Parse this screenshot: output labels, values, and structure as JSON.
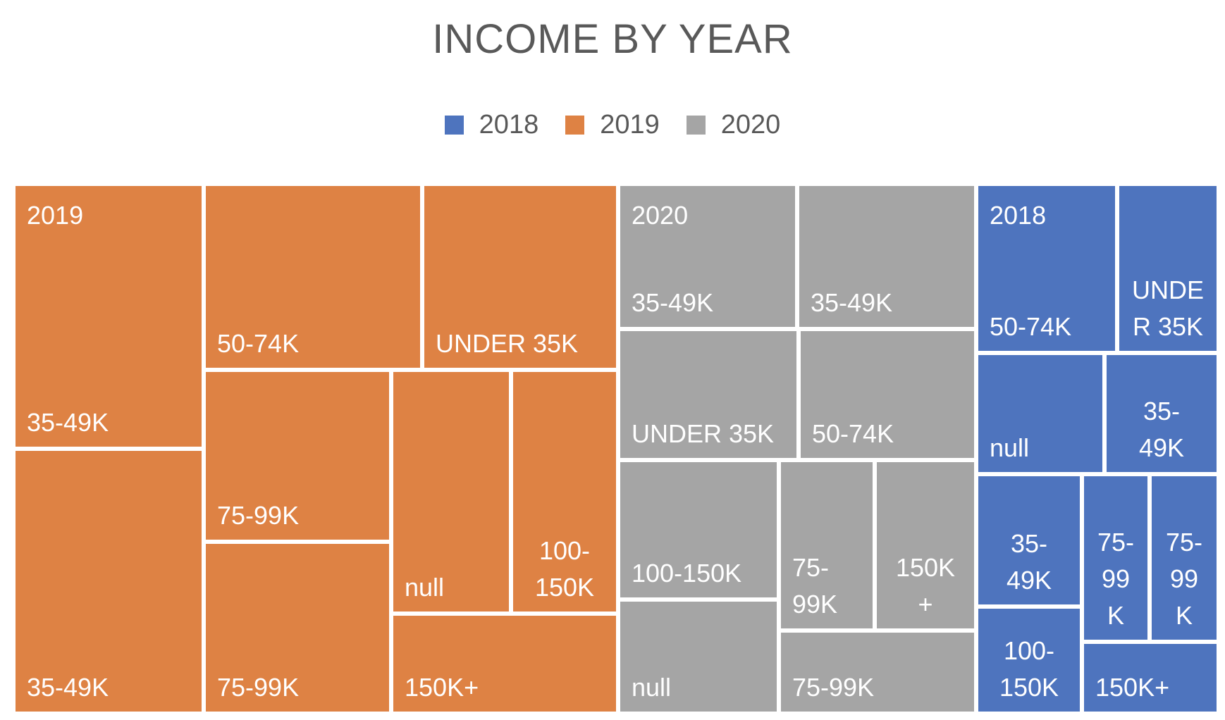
{
  "chart_data": {
    "type": "treemap",
    "title": "INCOME BY YEAR",
    "legend": {
      "placement": "top",
      "entries": [
        "2018",
        "2019",
        "2020"
      ]
    },
    "colors": {
      "2018": "#4E74BE",
      "2019": "#DE8244",
      "2020": "#A5A5A5"
    },
    "series": [
      {
        "name": "2019",
        "color": "#DE8244",
        "tiles": [
          {
            "label": "35-49K"
          },
          {
            "label": "35-49K"
          },
          {
            "label": "50-74K"
          },
          {
            "label": "UNDER 35K"
          },
          {
            "label": "75-99K"
          },
          {
            "label": "75-99K"
          },
          {
            "label": "null"
          },
          {
            "label": "100-150K"
          },
          {
            "label": "150K+"
          }
        ]
      },
      {
        "name": "2020",
        "color": "#A5A5A5",
        "tiles": [
          {
            "label": "35-49K"
          },
          {
            "label": "35-49K"
          },
          {
            "label": "UNDER 35K"
          },
          {
            "label": "50-74K"
          },
          {
            "label": "100-150K"
          },
          {
            "label": "null"
          },
          {
            "label": "75-99K"
          },
          {
            "label": "150K+"
          },
          {
            "label": "75-99K"
          }
        ]
      },
      {
        "name": "2018",
        "color": "#4E74BE",
        "tiles": [
          {
            "label": "50-74K"
          },
          {
            "label": "UNDER 35K"
          },
          {
            "label": "null"
          },
          {
            "label": "35-49K"
          },
          {
            "label": "35-49K"
          },
          {
            "label": "100-150K"
          },
          {
            "label": "75-99K"
          },
          {
            "label": "75-99K"
          },
          {
            "label": "150K+"
          }
        ]
      }
    ]
  }
}
